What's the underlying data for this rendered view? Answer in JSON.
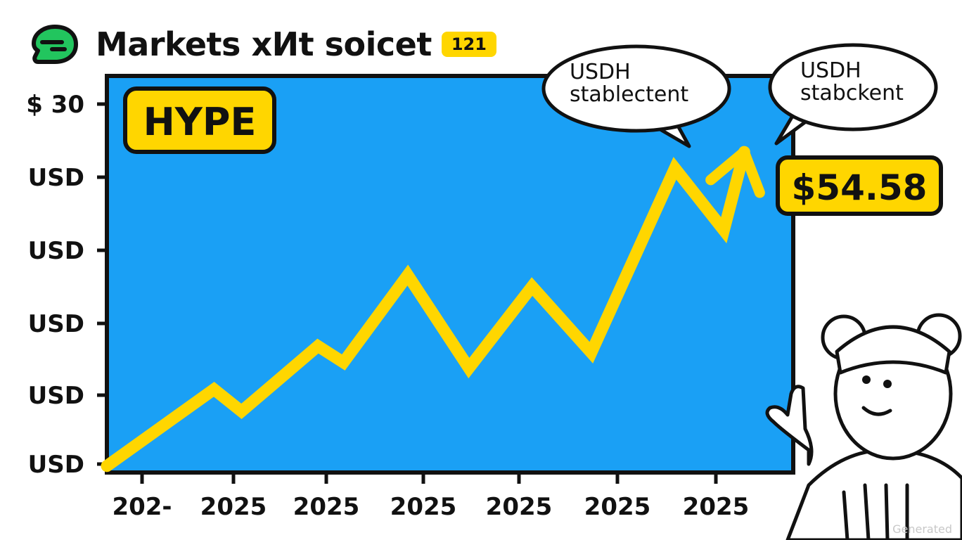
{
  "header": {
    "title": "Markets хИt soicet",
    "badge": "121"
  },
  "colors": {
    "plot_background": "#1aa0f5",
    "line": "#ffd600",
    "badge": "#ffd600",
    "logo": "#22c55e",
    "outline": "#111111"
  },
  "icons": {
    "logo": "green-blob-logo-icon",
    "mascot": "cartoon-mascot-pointing"
  },
  "chart_data": {
    "type": "line",
    "ylabel_ticks": [
      "$ 30",
      "USD",
      "USD",
      "USD",
      "USD",
      "USD"
    ],
    "xlabel_ticks": [
      "202-",
      "2025",
      "2025",
      "2025",
      "2025",
      "2025",
      "2025"
    ],
    "x": [
      0,
      1.05,
      1.32,
      2.07,
      2.32,
      2.95,
      3.55,
      4.17,
      4.75,
      5.57,
      6.05,
      6.25
    ],
    "y": [
      0.08,
      1.02,
      0.75,
      1.55,
      1.35,
      2.42,
      1.28,
      2.28,
      1.47,
      3.73,
      2.97,
      3.93
    ],
    "arrow_end": true,
    "grid": false,
    "legend": "none",
    "series_label": "HYPE",
    "price_label": "$54.58",
    "callouts": [
      {
        "title": "USDH",
        "subtitle": "stablectent"
      },
      {
        "title": "USDH",
        "subtitle": "stabckent"
      }
    ]
  },
  "watermark": "Generated"
}
